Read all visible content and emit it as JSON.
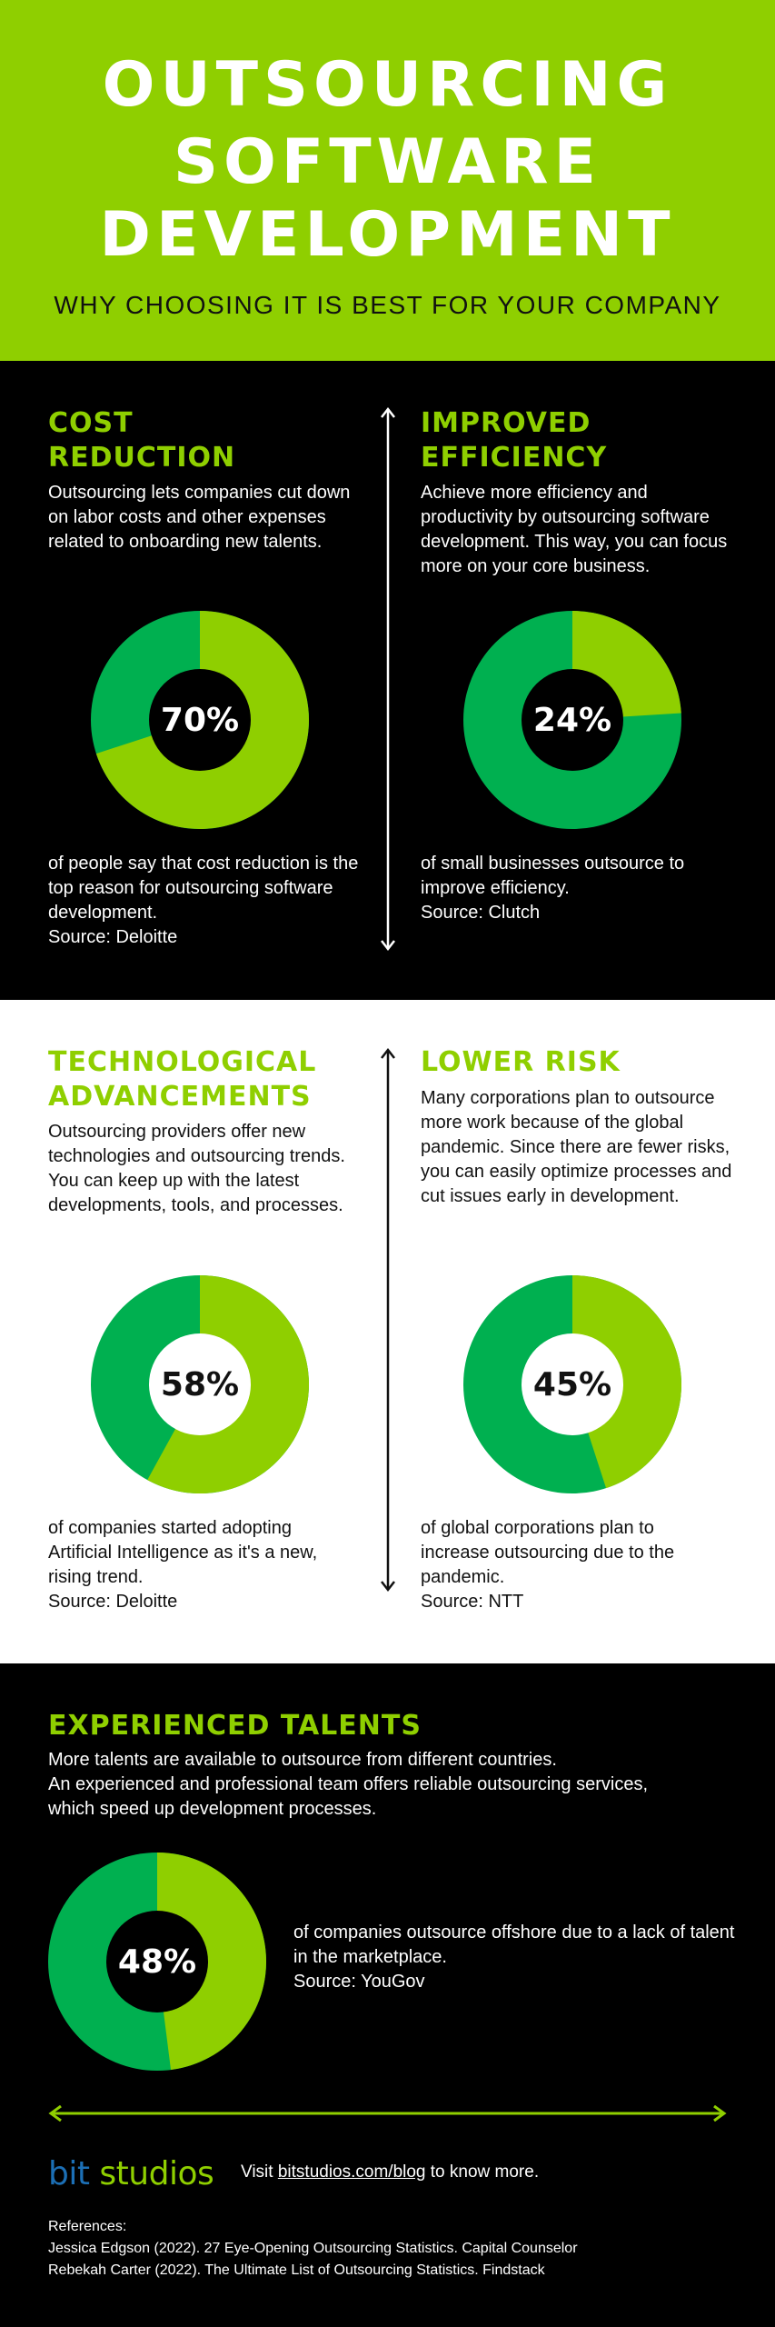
{
  "header": {
    "title_lines": [
      "OUTSOURCING",
      "SOFTWARE",
      "DEVELOPMENT"
    ],
    "subtitle": "WHY CHOOSING IT IS BEST FOR YOUR COMPANY"
  },
  "sections": {
    "cost": {
      "heading_lines": [
        "COST",
        "REDUCTION"
      ],
      "description": "Outsourcing lets companies cut down on labor costs and other expenses related to onboarding new talents.",
      "percent_label": "70%",
      "percent_value": 70,
      "caption": "of people say that cost reduction is the top reason for outsourcing software development.",
      "source": "Source: Deloitte"
    },
    "efficiency": {
      "heading_lines": [
        "IMPROVED",
        "EFFICIENCY"
      ],
      "description": "Achieve more efficiency and productivity by outsourcing software development. This way, you can focus more on your core business.",
      "percent_label": "24%",
      "percent_value": 24,
      "caption": "of small businesses outsource to improve efficiency.",
      "source": "Source: Clutch"
    },
    "technology": {
      "heading_lines": [
        "TECHNOLOGICAL",
        "ADVANCEMENTS"
      ],
      "description": "Outsourcing providers offer new technologies and outsourcing trends. You can keep up with the latest developments, tools, and processes.",
      "percent_label": "58%",
      "percent_value": 58,
      "caption": "of companies started adopting Artificial Intelligence as it's a new, rising trend.",
      "source": "Source: Deloitte"
    },
    "risk": {
      "heading_lines": [
        "LOWER RISK"
      ],
      "description": "Many corporations plan to outsource more work because of the global pandemic. Since there are fewer risks, you can easily optimize processes and cut issues early in development.",
      "percent_label": "45%",
      "percent_value": 45,
      "caption": "of global corporations plan to increase outsourcing due to the pandemic.",
      "source": "Source: NTT"
    },
    "talents": {
      "heading_lines": [
        "EXPERIENCED TALENTS"
      ],
      "description_lines": [
        "More talents are available to outsource from different countries.",
        "An experienced and professional team offers reliable outsourcing services,",
        "which speed up development processes."
      ],
      "percent_label": "48%",
      "percent_value": 48,
      "caption": "of companies outsource offshore due to a lack of talent in the marketplace.",
      "source": "Source: YouGov"
    }
  },
  "footer": {
    "logo_bit": "bit",
    "logo_studios": "studios",
    "visit_prefix": "Visit ",
    "visit_link": "bitstudios.com/blog",
    "visit_suffix": " to know more.",
    "references_label": "References:",
    "references": [
      "Jessica Edgson (2022). 27 Eye-Opening Outsourcing Statistics. Capital Counselor",
      "Rebekah Carter (2022). The Ultimate List of Outsourcing Statistics. Findstack"
    ]
  },
  "colors": {
    "lime": "#8fcf00",
    "green": "#00b050",
    "black": "#000000",
    "white": "#ffffff",
    "logo_blue": "#1c6fb5"
  }
}
